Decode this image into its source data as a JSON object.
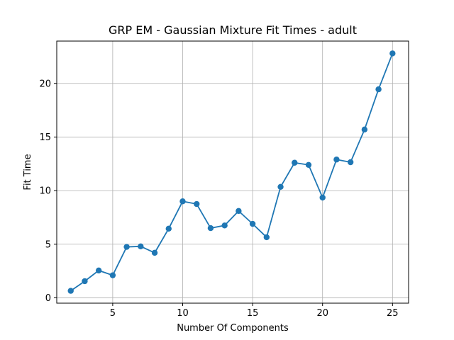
{
  "chart_data": {
    "type": "line",
    "title": "GRP EM - Gaussian Mixture Fit Times - adult",
    "xlabel": "Number Of Components",
    "ylabel": "Fit Time",
    "xlim": [
      1,
      26.15
    ],
    "ylim": [
      -0.5,
      23.95
    ],
    "xticks": [
      5,
      10,
      15,
      20,
      25
    ],
    "yticks": [
      0,
      5,
      10,
      15,
      20
    ],
    "grid": true,
    "series": [
      {
        "x": [
          2,
          3,
          4,
          5,
          6,
          7,
          8,
          9,
          10,
          11,
          12,
          13,
          14,
          15,
          16,
          17,
          18,
          19,
          20,
          21,
          22,
          23,
          24,
          25
        ],
        "values": [
          0.65,
          1.55,
          2.55,
          2.1,
          4.75,
          4.8,
          4.2,
          6.45,
          9.0,
          8.75,
          6.5,
          6.75,
          8.1,
          6.9,
          5.65,
          10.35,
          12.6,
          12.4,
          9.35,
          12.9,
          12.65,
          15.7,
          19.45,
          22.8
        ],
        "color": "#1f77b4",
        "marker": "circle"
      }
    ]
  }
}
